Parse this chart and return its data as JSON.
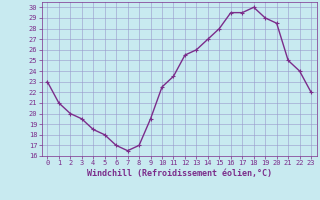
{
  "x": [
    0,
    1,
    2,
    3,
    4,
    5,
    6,
    7,
    8,
    9,
    10,
    11,
    12,
    13,
    14,
    15,
    16,
    17,
    18,
    19,
    20,
    21,
    22,
    23
  ],
  "y": [
    23,
    21,
    20,
    19.5,
    18.5,
    18,
    17,
    16.5,
    17,
    19.5,
    22.5,
    23.5,
    25.5,
    26,
    27,
    28,
    29.5,
    29.5,
    30,
    29,
    28.5,
    25,
    24,
    22
  ],
  "line_color": "#7b2d8b",
  "marker": "+",
  "marker_size": 3,
  "line_width": 1,
  "bg_color": "#c8eaf0",
  "grid_color": "#9999cc",
  "xlabel": "Windchill (Refroidissement éolien,°C)",
  "ylim": [
    16,
    30.5
  ],
  "xlim": [
    -0.5,
    23.5
  ],
  "yticks": [
    16,
    17,
    18,
    19,
    20,
    21,
    22,
    23,
    24,
    25,
    26,
    27,
    28,
    29,
    30
  ],
  "xticks": [
    0,
    1,
    2,
    3,
    4,
    5,
    6,
    7,
    8,
    9,
    10,
    11,
    12,
    13,
    14,
    15,
    16,
    17,
    18,
    19,
    20,
    21,
    22,
    23
  ],
  "tick_color": "#7b2d8b",
  "tick_fontsize": 5,
  "xlabel_fontsize": 6,
  "xlabel_color": "#7b2d8b"
}
